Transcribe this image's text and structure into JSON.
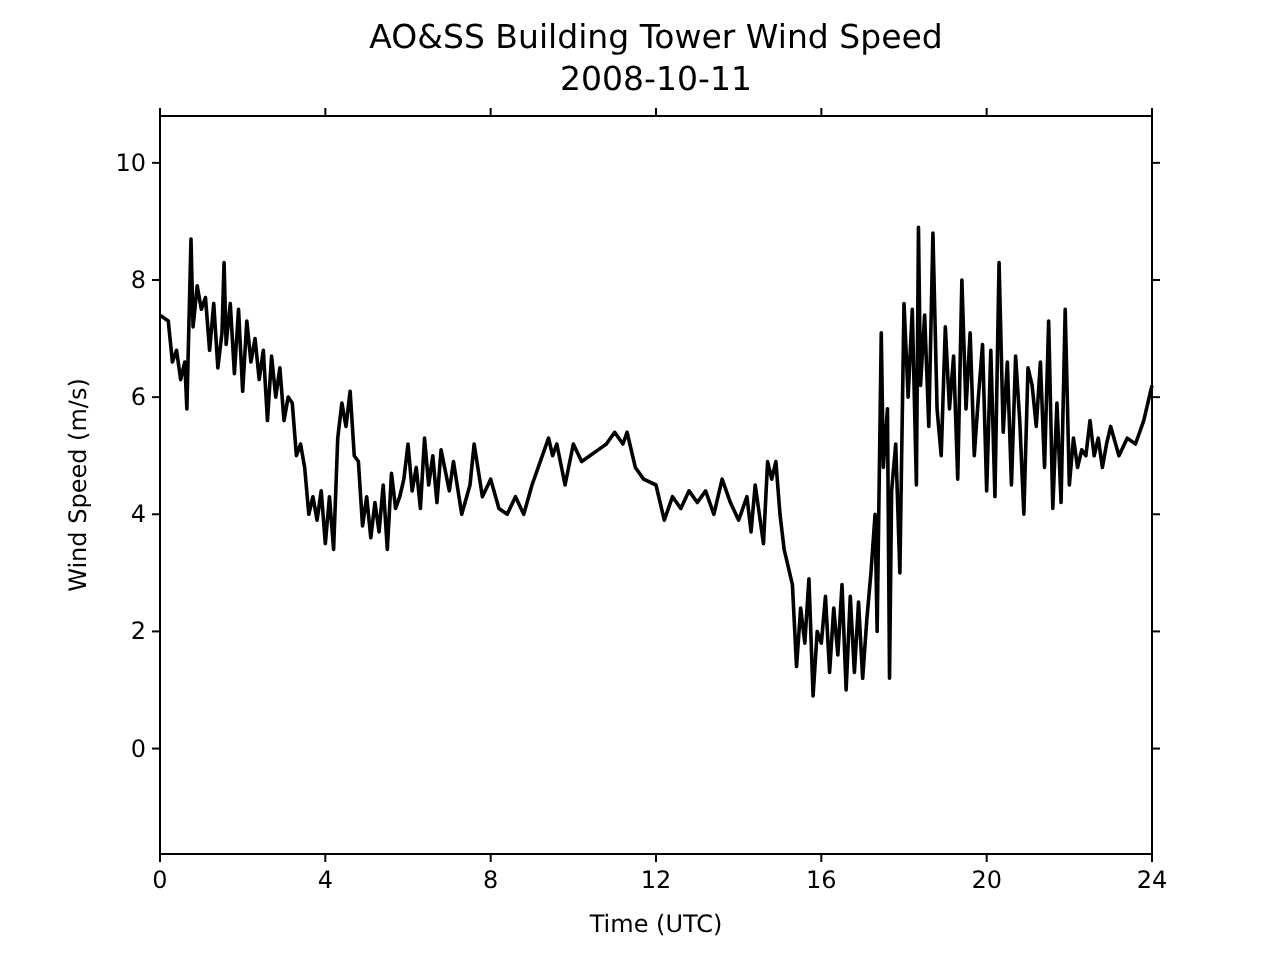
{
  "chart_data": {
    "type": "line",
    "title": "AO&SS Building Tower Wind Speed",
    "subtitle": "2008-10-11",
    "xlabel": "Time (UTC)",
    "ylabel": "Wind Speed (m/s)",
    "xlim": [
      0,
      24
    ],
    "xticks": [
      0,
      4,
      8,
      12,
      16,
      20,
      24
    ],
    "ylim": [
      -1.8,
      10.8
    ],
    "yticks": [
      0,
      2,
      4,
      6,
      8,
      10
    ],
    "series": [
      {
        "color": "#000000",
        "x": [
          0,
          0.2,
          0.3,
          0.4,
          0.5,
          0.6,
          0.65,
          0.75,
          0.8,
          0.9,
          1.0,
          1.1,
          1.2,
          1.3,
          1.4,
          1.5,
          1.55,
          1.6,
          1.7,
          1.8,
          1.9,
          2.0,
          2.1,
          2.2,
          2.3,
          2.4,
          2.5,
          2.6,
          2.7,
          2.8,
          2.9,
          3.0,
          3.1,
          3.2,
          3.3,
          3.4,
          3.5,
          3.6,
          3.7,
          3.8,
          3.9,
          4.0,
          4.1,
          4.2,
          4.3,
          4.4,
          4.5,
          4.6,
          4.7,
          4.8,
          4.9,
          5.0,
          5.1,
          5.2,
          5.3,
          5.4,
          5.5,
          5.6,
          5.7,
          5.8,
          5.9,
          6.0,
          6.1,
          6.2,
          6.3,
          6.4,
          6.5,
          6.6,
          6.7,
          6.8,
          7.0,
          7.1,
          7.3,
          7.5,
          7.6,
          7.8,
          8.0,
          8.2,
          8.4,
          8.6,
          8.8,
          9.0,
          9.2,
          9.4,
          9.5,
          9.6,
          9.8,
          10.0,
          10.2,
          10.4,
          10.6,
          10.8,
          11.0,
          11.2,
          11.3,
          11.5,
          11.7,
          12.0,
          12.2,
          12.4,
          12.6,
          12.8,
          13.0,
          13.2,
          13.4,
          13.6,
          13.8,
          14.0,
          14.2,
          14.3,
          14.4,
          14.6,
          14.7,
          14.8,
          14.9,
          15.0,
          15.1,
          15.3,
          15.4,
          15.5,
          15.6,
          15.7,
          15.8,
          15.9,
          16.0,
          16.1,
          16.2,
          16.3,
          16.4,
          16.5,
          16.6,
          16.7,
          16.8,
          16.9,
          17.0,
          17.1,
          17.2,
          17.3,
          17.35,
          17.45,
          17.5,
          17.6,
          17.65,
          17.7,
          17.8,
          17.9,
          18.0,
          18.1,
          18.2,
          18.3,
          18.35,
          18.4,
          18.5,
          18.6,
          18.7,
          18.8,
          18.9,
          19.0,
          19.1,
          19.2,
          19.3,
          19.4,
          19.5,
          19.6,
          19.7,
          19.8,
          19.9,
          20.0,
          20.1,
          20.2,
          20.3,
          20.4,
          20.5,
          20.6,
          20.7,
          20.8,
          20.9,
          21.0,
          21.1,
          21.2,
          21.3,
          21.4,
          21.5,
          21.6,
          21.7,
          21.8,
          21.9,
          22.0,
          22.1,
          22.2,
          22.3,
          22.4,
          22.5,
          22.6,
          22.7,
          22.8,
          22.9,
          23.0,
          23.2,
          23.4,
          23.6,
          23.8,
          24.0
        ],
        "values": [
          7.4,
          7.3,
          6.6,
          6.8,
          6.3,
          6.6,
          5.8,
          8.7,
          7.2,
          7.9,
          7.5,
          7.7,
          6.8,
          7.6,
          6.5,
          7.1,
          8.3,
          6.9,
          7.6,
          6.4,
          7.5,
          6.1,
          7.3,
          6.6,
          7.0,
          6.3,
          6.8,
          5.6,
          6.7,
          6.0,
          6.5,
          5.6,
          6.0,
          5.9,
          5.0,
          5.2,
          4.8,
          4.0,
          4.3,
          3.9,
          4.4,
          3.5,
          4.3,
          3.4,
          5.3,
          5.9,
          5.5,
          6.1,
          5.0,
          4.9,
          3.8,
          4.3,
          3.6,
          4.2,
          3.7,
          4.5,
          3.4,
          4.7,
          4.1,
          4.3,
          4.6,
          5.2,
          4.4,
          4.8,
          4.1,
          5.3,
          4.5,
          5.0,
          4.2,
          5.1,
          4.4,
          4.9,
          4.0,
          4.5,
          5.2,
          4.3,
          4.6,
          4.1,
          4.0,
          4.3,
          4.0,
          4.5,
          4.9,
          5.3,
          5.0,
          5.2,
          4.5,
          5.2,
          4.9,
          5.0,
          5.1,
          5.2,
          5.4,
          5.2,
          5.4,
          4.8,
          4.6,
          4.5,
          3.9,
          4.3,
          4.1,
          4.4,
          4.2,
          4.4,
          4.0,
          4.6,
          4.2,
          3.9,
          4.3,
          3.7,
          4.5,
          3.5,
          4.9,
          4.6,
          4.9,
          4.0,
          3.4,
          2.8,
          1.4,
          2.4,
          1.8,
          2.9,
          0.9,
          2.0,
          1.8,
          2.6,
          1.3,
          2.4,
          1.6,
          2.8,
          1.0,
          2.6,
          1.3,
          2.5,
          1.2,
          2.2,
          3.0,
          4.0,
          2.0,
          7.1,
          4.8,
          5.8,
          1.2,
          4.4,
          5.2,
          3.0,
          7.6,
          6.0,
          7.5,
          4.5,
          8.9,
          6.2,
          7.4,
          5.5,
          8.8,
          5.8,
          5.0,
          7.2,
          5.8,
          6.7,
          4.6,
          8.0,
          5.8,
          7.1,
          5.0,
          6.0,
          6.9,
          4.4,
          6.8,
          4.3,
          8.3,
          5.4,
          6.6,
          4.5,
          6.7,
          5.6,
          4.0,
          6.5,
          6.2,
          5.5,
          6.6,
          4.8,
          7.3,
          4.1,
          5.9,
          4.2,
          7.5,
          4.5,
          5.3,
          4.8,
          5.1,
          5.0,
          5.6,
          5.0,
          5.3,
          4.8,
          5.2,
          5.5,
          5.0,
          5.3,
          5.2,
          5.6,
          6.2
        ]
      }
    ]
  }
}
